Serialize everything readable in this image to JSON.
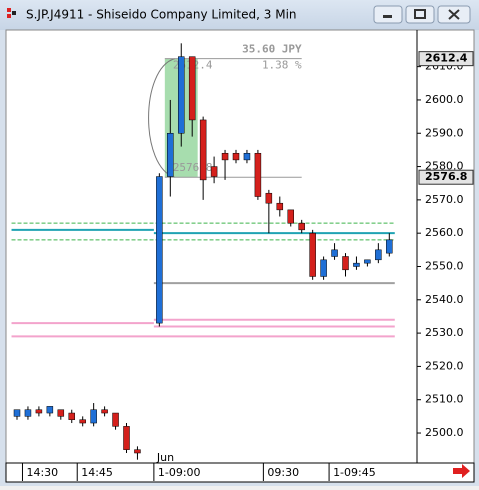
{
  "window": {
    "title": "S.JP.J4911 - Shiseido Company Limited, 3 Min"
  },
  "chart_data": {
    "type": "candlestick",
    "categories": [
      null,
      "14:30",
      null,
      null,
      null,
      null,
      "14:45",
      null,
      null,
      null,
      null,
      null,
      null,
      "1-09:00",
      null,
      null,
      null,
      null,
      null,
      null,
      null,
      null,
      null,
      "09:30",
      null,
      null,
      null,
      null,
      null,
      "1-09:45",
      null,
      null,
      null,
      null,
      null
    ],
    "date_label": {
      "index": 13,
      "text": "Jun"
    },
    "open": [
      2505,
      2505,
      2507,
      2506,
      2507,
      2506,
      2504,
      2503,
      2507,
      2506,
      2502,
      2495,
      null,
      2533,
      2577,
      2590,
      2613,
      2594,
      2580,
      2584,
      2584,
      2582,
      2584,
      2572,
      2569,
      2567,
      2563,
      2560,
      2547,
      2553,
      2553,
      2550,
      2551,
      2552,
      2554
    ],
    "high": [
      2507,
      2508,
      2508,
      2508,
      2507,
      2507,
      2505,
      2509,
      2508,
      2506,
      2503,
      2496,
      null,
      2578,
      2600,
      2617,
      2613,
      2595,
      2583,
      2585,
      2585,
      2585,
      2585,
      2573,
      2571,
      2567,
      2564,
      2561,
      2553,
      2557,
      2554,
      2553,
      2552,
      2557,
      2560
    ],
    "low": [
      2504,
      2504,
      2505,
      2505,
      2504,
      2503,
      2502,
      2502,
      2505,
      2501,
      2494,
      2492,
      null,
      2532,
      2571,
      2586,
      2589,
      2570,
      2575,
      2576,
      2581,
      2581,
      2570,
      2560,
      2565,
      2562,
      2560,
      2546,
      2546,
      2552,
      2547,
      2549,
      2550,
      2551,
      2553
    ],
    "close": [
      2507,
      2507,
      2506,
      2508,
      2505,
      2504,
      2503,
      2507,
      2506,
      2502,
      2495,
      2494,
      null,
      2577,
      2590,
      2613,
      2594,
      2576,
      2577,
      2582,
      2582,
      2584,
      2571,
      2569,
      2567,
      2563,
      2561,
      2547,
      2552,
      2555,
      2549,
      2551,
      2552,
      2555,
      2558
    ],
    "up_color": "#1f6fd6",
    "down_color": "#d4201c",
    "ylim": [
      2491,
      2621
    ],
    "yticks": [
      {
        "value": 2500,
        "label": "2500.0"
      },
      {
        "value": 2510,
        "label": "2510.0"
      },
      {
        "value": 2520,
        "label": "2520.0"
      },
      {
        "value": 2530,
        "label": "2530.0"
      },
      {
        "value": 2540,
        "label": "2540.0"
      },
      {
        "value": 2550,
        "label": "2550.0"
      },
      {
        "value": 2560,
        "label": "2560.0"
      },
      {
        "value": 2570,
        "label": "2570.0"
      },
      {
        "value": 2580,
        "label": "2580.0"
      },
      {
        "value": 2590,
        "label": "2590.0"
      },
      {
        "value": 2600,
        "label": "2600.0"
      },
      {
        "value": 2610,
        "label": "2610.0"
      }
    ],
    "levels": [
      {
        "value": 2561,
        "from": 0,
        "to": 12,
        "color": "#1fa3b3",
        "dashed": false
      },
      {
        "value": 2560,
        "from": 13,
        "to": 34,
        "color": "#1fa3b3",
        "dashed": false
      },
      {
        "value": 2563,
        "from": 0,
        "to": 34,
        "color": "#3cb44b",
        "dashed": true
      },
      {
        "value": 2558,
        "from": 0,
        "to": 34,
        "color": "#3cb44b",
        "dashed": true
      },
      {
        "value": 2545,
        "from": 13,
        "to": 34,
        "color": "#a0a0a0",
        "dashed": false
      },
      {
        "value": 2533,
        "from": 0,
        "to": 12,
        "color": "#f3a3cc",
        "dashed": false
      },
      {
        "value": 2534,
        "from": 13,
        "to": 34,
        "color": "#f3a3cc",
        "dashed": false
      },
      {
        "value": 2532,
        "from": 13,
        "to": 34,
        "color": "#f3a3cc",
        "dashed": false
      },
      {
        "value": 2529,
        "from": 0,
        "to": 34,
        "color": "#f3a3cc",
        "dashed": false
      }
    ],
    "measure": {
      "high": 2612.4,
      "low": 2576.8,
      "from": 14,
      "to": 16,
      "line_to": 26,
      "change": {
        "value": 35.6,
        "label": "35.60 JPY"
      },
      "percent": {
        "value": 1.38,
        "label": "1.38 %"
      }
    }
  }
}
